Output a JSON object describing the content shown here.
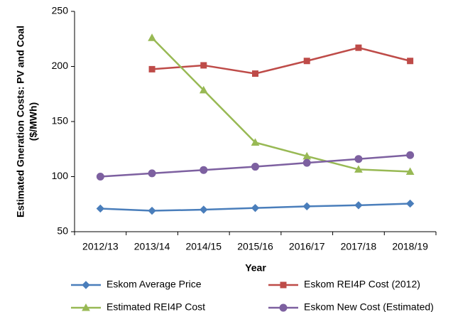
{
  "chart_data": {
    "type": "line",
    "ylabel": [
      "Estimated Gneration Costs: PV and Coal",
      "($/MWh)"
    ],
    "xlabel": "Year",
    "categories": [
      "2012/13",
      "2013/14",
      "2014/15",
      "2015/16",
      "2016/17",
      "2017/18",
      "2018/19"
    ],
    "series": [
      {
        "name": "Eskom Average Price",
        "color": "#4a7ebb",
        "marker": "diamond",
        "values": [
          71,
          69,
          70,
          71.5,
          73,
          74,
          75.5
        ]
      },
      {
        "name": "Eskom REI4P Cost (2012)",
        "color": "#be4b48",
        "marker": "square",
        "values": [
          null,
          197.5,
          201,
          193.5,
          205,
          217,
          205
        ]
      },
      {
        "name": "Estimated REI4P Cost",
        "color": "#98b954",
        "marker": "triangle",
        "values": [
          null,
          226,
          178.5,
          131,
          118.5,
          106.5,
          104.5
        ]
      },
      {
        "name": "Eskom New Cost (Estimated)",
        "color": "#7d60a0",
        "marker": "circle",
        "values": [
          100,
          103,
          106,
          109,
          112.5,
          116,
          119.5
        ]
      }
    ],
    "ylim": [
      50,
      250
    ],
    "yticks": [
      50,
      100,
      150,
      200,
      250
    ],
    "grid": false
  }
}
